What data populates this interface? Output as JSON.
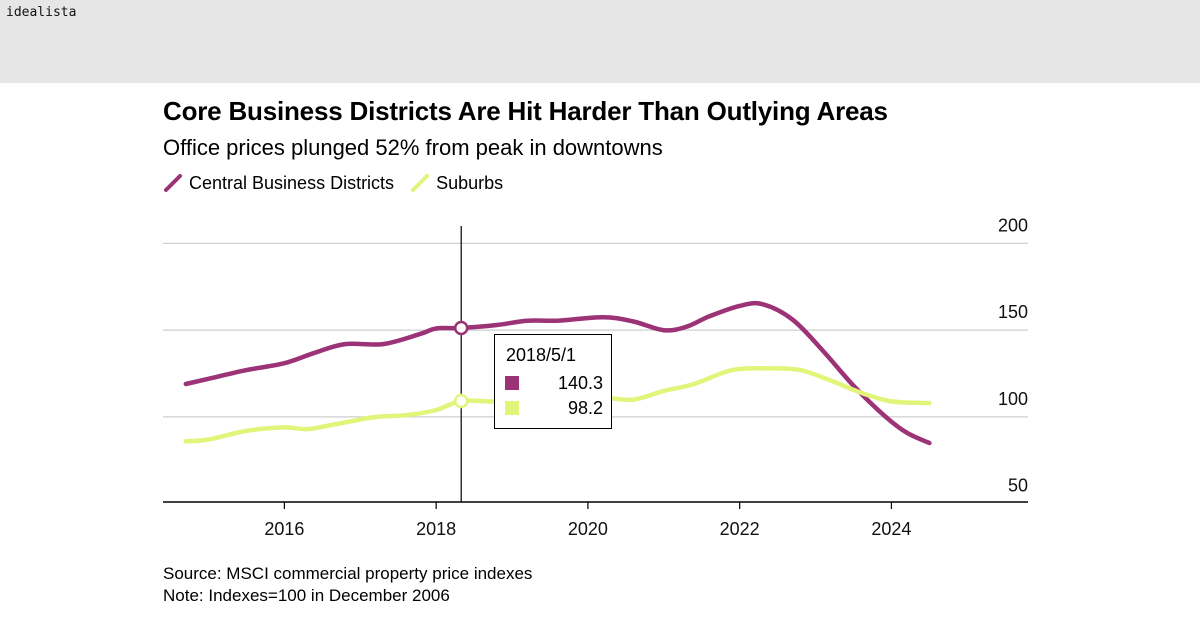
{
  "brand": "idealista",
  "chart_data": {
    "type": "line",
    "title": "Core Business Districts Are Hit Harder Than Outlying Areas",
    "subtitle": "Office prices plunged 52% from peak in downtowns",
    "xlabel": "",
    "ylabel": "",
    "xlim": [
      2014.4,
      2025.8
    ],
    "ylim": [
      40,
      210
    ],
    "x_ticks": [
      2016,
      2018,
      2020,
      2022,
      2024
    ],
    "y_ticks": [
      50,
      100,
      150,
      200
    ],
    "grid": true,
    "series": [
      {
        "name": "Central Business Districts",
        "color": "#9c3377",
        "points": [
          [
            2014.7,
            108
          ],
          [
            2015.0,
            111
          ],
          [
            2015.5,
            116
          ],
          [
            2016.0,
            120
          ],
          [
            2016.4,
            126
          ],
          [
            2016.8,
            131
          ],
          [
            2017.3,
            131
          ],
          [
            2017.8,
            137
          ],
          [
            2018.0,
            140
          ],
          [
            2018.33,
            140.3
          ],
          [
            2018.8,
            142
          ],
          [
            2019.2,
            144.5
          ],
          [
            2019.6,
            144.5
          ],
          [
            2020.2,
            146.5
          ],
          [
            2020.6,
            144
          ],
          [
            2021.0,
            139
          ],
          [
            2021.3,
            141
          ],
          [
            2021.6,
            147
          ],
          [
            2022.0,
            153
          ],
          [
            2022.3,
            154
          ],
          [
            2022.7,
            145
          ],
          [
            2023.1,
            127
          ],
          [
            2023.5,
            107
          ],
          [
            2023.9,
            90
          ],
          [
            2024.2,
            80
          ],
          [
            2024.5,
            74
          ]
        ]
      },
      {
        "name": "Suburbs",
        "color": "#e2f57a",
        "points": [
          [
            2014.7,
            75
          ],
          [
            2015.0,
            76
          ],
          [
            2015.5,
            81
          ],
          [
            2016.0,
            83
          ],
          [
            2016.3,
            82
          ],
          [
            2016.7,
            85
          ],
          [
            2017.2,
            89
          ],
          [
            2017.6,
            90
          ],
          [
            2018.0,
            93
          ],
          [
            2018.33,
            98.2
          ],
          [
            2018.8,
            98
          ],
          [
            2019.3,
            100
          ],
          [
            2020.2,
            100
          ],
          [
            2020.6,
            99
          ],
          [
            2021.0,
            104
          ],
          [
            2021.4,
            108
          ],
          [
            2021.9,
            116
          ],
          [
            2022.4,
            117
          ],
          [
            2022.8,
            116
          ],
          [
            2023.2,
            110
          ],
          [
            2023.6,
            103
          ],
          [
            2024.0,
            98
          ],
          [
            2024.5,
            97
          ]
        ]
      }
    ],
    "crosshair": {
      "x": 2018.33,
      "date_label": "2018/5/1",
      "values": [
        {
          "series": "Central Business Districts",
          "value": 140.3,
          "label": "140.3"
        },
        {
          "series": "Suburbs",
          "value": 98.2,
          "label": "98.2"
        }
      ]
    }
  },
  "legend": [
    {
      "label": "Central Business Districts",
      "color": "#9c3377"
    },
    {
      "label": "Suburbs",
      "color": "#e2f57a"
    }
  ],
  "footer": {
    "source": "Source: MSCI commercial property price indexes",
    "note": "Note: Indexes=100 in December 2006"
  }
}
